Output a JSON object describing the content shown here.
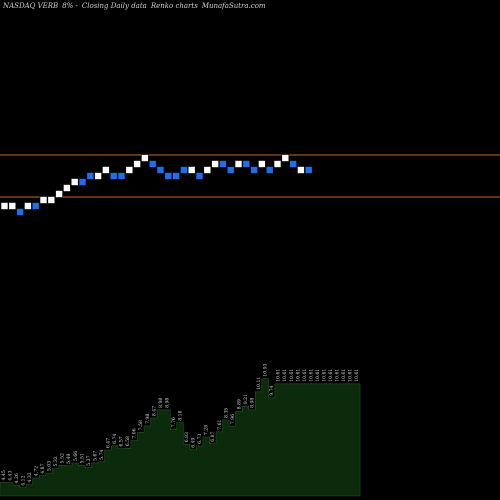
{
  "header": {
    "symbol": "NASDAQ VERB",
    "change": "8% -",
    "subtitle": "Closing Daily data",
    "chart_name": "Renko charts",
    "site": "MunafaSutra.com"
  },
  "colors": {
    "background": "#000000",
    "up_brick": "#ffffff",
    "down_brick": "#1f6fe8",
    "brick_border": "#000000",
    "level_line": "#c46a28",
    "volume_fill": "#0c2a0c",
    "volume_stroke": "#1c5a1c",
    "label": "#d8d8d8"
  },
  "chart_data": {
    "type": "renko",
    "title": "NASDAQ VERB 8% -  Closing Daily data  Renko charts MunafaSutra.com",
    "bricks": {
      "levels": [
        2,
        2,
        1,
        2,
        2,
        3,
        3,
        4,
        5,
        6,
        6,
        7,
        7,
        8,
        7,
        7,
        8,
        9,
        10,
        9,
        8,
        7,
        7,
        8,
        8,
        7,
        8,
        9,
        9,
        8,
        9,
        9,
        8,
        9,
        8,
        9,
        10,
        9,
        8,
        8
      ],
      "directions": [
        "up",
        "up",
        "down",
        "up",
        "down",
        "up",
        "up",
        "up",
        "up",
        "up",
        "down",
        "down",
        "up",
        "up",
        "down",
        "down",
        "up",
        "up",
        "up",
        "down",
        "down",
        "down",
        "down",
        "down",
        "up",
        "down",
        "up",
        "up",
        "down",
        "down",
        "up",
        "down",
        "down",
        "up",
        "down",
        "up",
        "up",
        "down",
        "up",
        "down"
      ]
    },
    "reference_levels": {
      "upper_level_value": 10.5,
      "lower_level_value": 3.5
    },
    "volume": {
      "values": [
        4.45,
        4.43,
        4.26,
        4.12,
        4.32,
        4.72,
        4.87,
        5.03,
        5.32,
        5.52,
        5.49,
        5.66,
        5.51,
        5.37,
        5.67,
        5.74,
        6.47,
        6.74,
        6.57,
        6.58,
        7.06,
        7.58,
        7.98,
        8.47,
        8.98,
        8.98,
        7.76,
        8.18,
        6.83,
        6.49,
        6.73,
        7.28,
        6.87,
        7.61,
        8.35,
        7.96,
        8.89,
        9.21,
        8.98,
        10.11,
        10.93,
        9.74,
        10.61,
        10.61,
        10.61,
        10.61,
        10.61,
        10.61,
        10.61,
        10.61,
        10.61,
        10.61,
        10.61,
        10.61,
        10.61
      ],
      "labels": [
        "4.45",
        "4.43",
        "4.26",
        "4.12",
        "4.32",
        "4.72",
        "4.87",
        "5.03",
        "5.32",
        "5.52",
        "5.49",
        "5.66",
        "5.51",
        "5.37",
        "5.67",
        "5.74",
        "6.47",
        "6.74",
        "6.57",
        "6.58",
        "7.06",
        "7.58",
        "7.98",
        "8.47",
        "8.98",
        "8.98",
        "7.76",
        "8.18",
        "6.83",
        "6.49",
        "6.73",
        "7.28",
        "6.87",
        "7.61",
        "8.35",
        "7.96",
        "8.89",
        "9.21",
        "8.98",
        "10.11",
        "10.93",
        "9.74",
        "10.61",
        "10.61",
        "10.61",
        "10.61",
        "10.61",
        "10.61",
        "10.61",
        "10.61",
        "10.61",
        "10.61",
        "10.61",
        "10.61",
        "10.61"
      ]
    }
  }
}
